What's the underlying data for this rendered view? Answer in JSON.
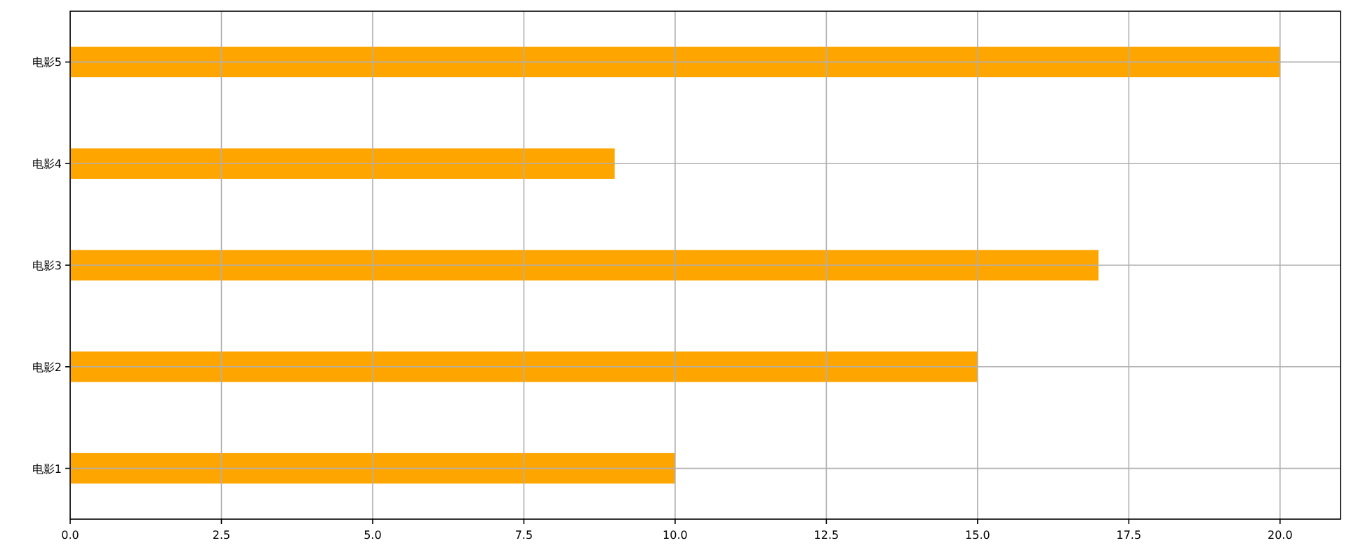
{
  "chart_data": {
    "type": "bar",
    "orientation": "horizontal",
    "categories": [
      "电影5",
      "电影4",
      "电影3",
      "电影2",
      "电影1"
    ],
    "values": [
      20,
      9,
      17,
      15,
      10
    ],
    "color": "#ffa500",
    "xlim": [
      0,
      21
    ],
    "xticks": [
      {
        "value": 0,
        "label": "0.0"
      },
      {
        "value": 2.5,
        "label": "2.5"
      },
      {
        "value": 5,
        "label": "5.0"
      },
      {
        "value": 7.5,
        "label": "7.5"
      },
      {
        "value": 10,
        "label": "10.0"
      },
      {
        "value": 12.5,
        "label": "12.5"
      },
      {
        "value": 15,
        "label": "15.0"
      },
      {
        "value": 17.5,
        "label": "17.5"
      },
      {
        "value": 20,
        "label": "20.0"
      }
    ],
    "grid": true
  }
}
